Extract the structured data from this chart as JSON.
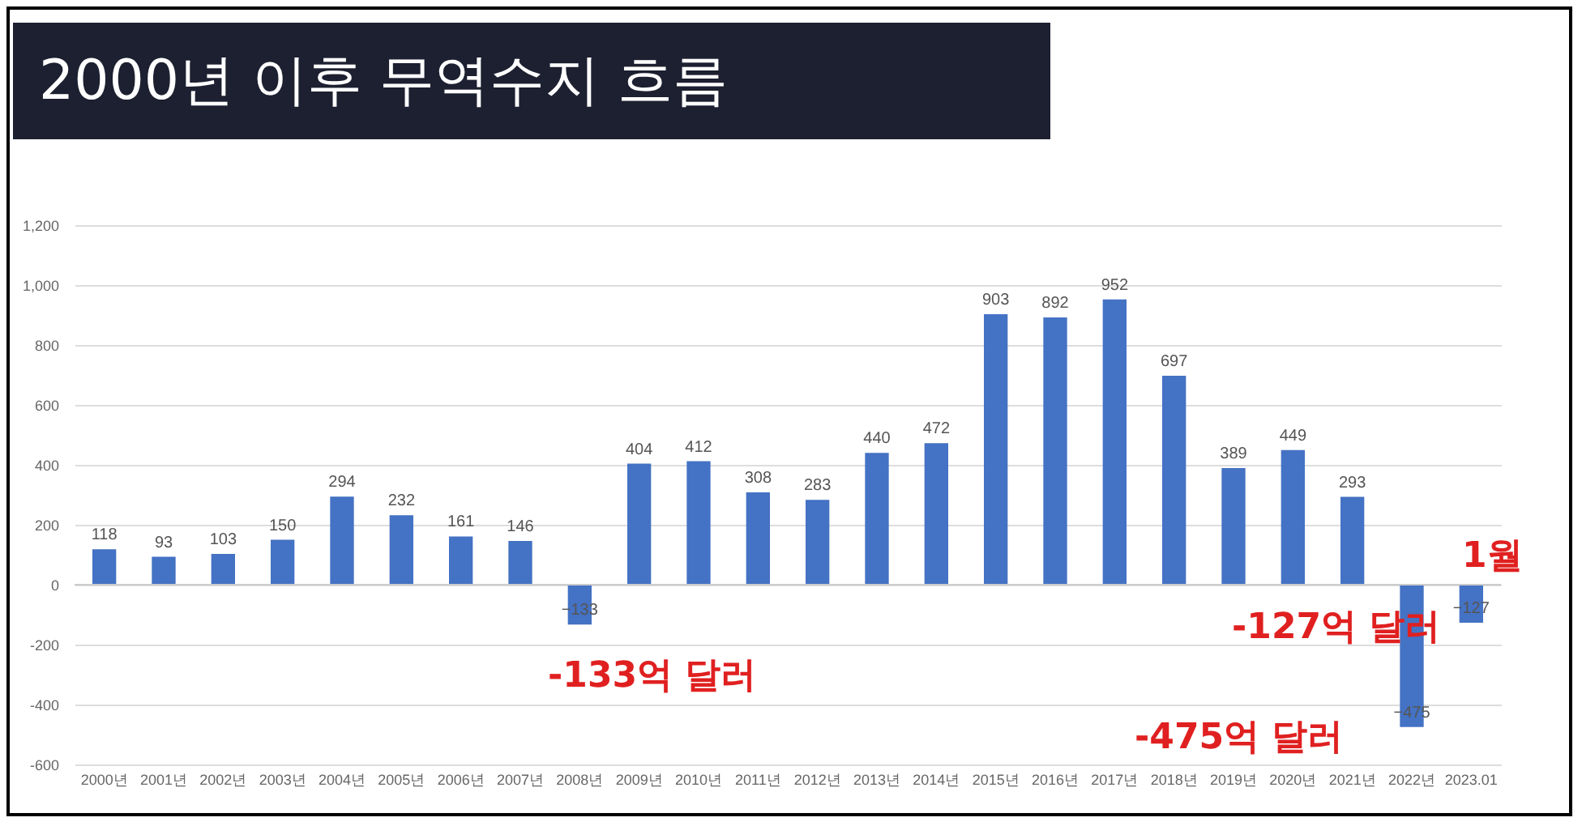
{
  "chart_data": {
    "type": "bar",
    "title": "2000년 이후 무역수지 흐름",
    "categories": [
      "2000년",
      "2001년",
      "2002년",
      "2003년",
      "2004년",
      "2005년",
      "2006년",
      "2007년",
      "2008년",
      "2009년",
      "2010년",
      "2011년",
      "2012년",
      "2013년",
      "2014년",
      "2015년",
      "2016년",
      "2017년",
      "2018년",
      "2019년",
      "2020년",
      "2021년",
      "2022년",
      "2023.01"
    ],
    "values": [
      118,
      93,
      103,
      150,
      294,
      232,
      161,
      146,
      -133,
      404,
      412,
      308,
      283,
      440,
      472,
      903,
      892,
      952,
      697,
      389,
      449,
      293,
      -475,
      -127
    ],
    "color": "#4472c4",
    "ylim": [
      -600,
      1200
    ],
    "yticks": [
      -600,
      -400,
      -200,
      0,
      200,
      400,
      600,
      800,
      {
        "value": 1000,
        "label": "1,000"
      },
      {
        "value": 1200,
        "label": "1,200"
      }
    ],
    "grid": "y",
    "data_labels": true,
    "annotations": [
      "-133억 달러",
      "-127억 달러",
      "1월",
      "-475억 달러"
    ]
  }
}
